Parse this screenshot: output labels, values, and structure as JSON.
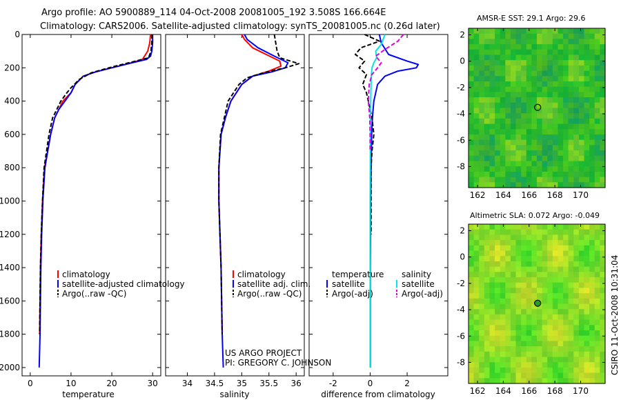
{
  "header": {
    "line1": "Argo profile: AO 5900889_114 04-Oct-2008 20081005_192 3.508S 166.664E",
    "line2": "Climatology: CARS2006. Satellite-adjusted climatology: synTS_20081005.nc (0.26d later)"
  },
  "colors": {
    "climatology": "#ff0000",
    "satellite": "#0000ff",
    "argo": "#000000",
    "satellite_salinity": "#00e5e5",
    "argo_adj_salinity": "#e000e0"
  },
  "chart_data": [
    {
      "type": "line",
      "name": "temperature-profile",
      "xlabel": "temperature",
      "ylabel": "",
      "xlim": [
        -2,
        32
      ],
      "ylim": [
        2050,
        0
      ],
      "xticks": [
        "0",
        "10",
        "20",
        "30"
      ],
      "xtick_values": [
        0,
        10,
        20,
        30
      ],
      "yticks": [
        "0",
        "200",
        "400",
        "600",
        "800",
        "1000",
        "1200",
        "1400",
        "1600",
        "1800",
        "2000"
      ],
      "ytick_values": [
        0,
        200,
        400,
        600,
        800,
        1000,
        1200,
        1400,
        1600,
        1800,
        2000
      ],
      "legend": [
        "climatology",
        "satellite-adjusted climatology",
        "Argo(..raw -QC)"
      ],
      "series": [
        {
          "name": "climatology",
          "color": "#ff0000",
          "style": "solid",
          "x": [
            29.5,
            29.3,
            28.8,
            27.5,
            24,
            20,
            16,
            13,
            11,
            10,
            8,
            7,
            6,
            5,
            4.3,
            3.5,
            3,
            2.7,
            2.5,
            2.4,
            2.3
          ],
          "y": [
            0,
            50,
            100,
            150,
            175,
            200,
            225,
            250,
            300,
            350,
            400,
            450,
            500,
            600,
            700,
            800,
            1000,
            1200,
            1400,
            1600,
            1800
          ]
        },
        {
          "name": "satellite-adjusted climatology",
          "color": "#0000ff",
          "style": "solid",
          "x": [
            30,
            30,
            29.8,
            29.5,
            28.5,
            25,
            20,
            16,
            13,
            11,
            10,
            8.5,
            7,
            6,
            5,
            4.3,
            3.6,
            3.1,
            2.8,
            2.6,
            2.5,
            2.4,
            2.3,
            2.2
          ],
          "y": [
            0,
            50,
            100,
            130,
            150,
            170,
            200,
            225,
            250,
            300,
            350,
            400,
            450,
            500,
            600,
            700,
            800,
            1000,
            1200,
            1400,
            1600,
            1800,
            1900,
            2000
          ]
        },
        {
          "name": "Argo(..raw -QC)",
          "color": "#000000",
          "style": "dashed",
          "x": [
            29.8,
            29.8,
            29.6,
            29.0,
            25,
            20,
            15,
            12,
            10,
            9,
            7.5,
            6.5,
            5.5,
            4.6,
            4,
            3.4,
            3,
            2.7,
            2.5,
            2.4,
            2.3
          ],
          "y": [
            0,
            50,
            100,
            140,
            165,
            195,
            230,
            270,
            320,
            350,
            400,
            450,
            500,
            600,
            700,
            800,
            1000,
            1200,
            1400,
            1600,
            1800
          ]
        }
      ]
    },
    {
      "type": "line",
      "name": "salinity-profile",
      "xlabel": "salinity",
      "xlim": [
        33.6,
        36.15
      ],
      "ylim": [
        2050,
        0
      ],
      "xticks": [
        "34",
        "34.5",
        "35",
        "35.5",
        "36"
      ],
      "xtick_values": [
        34,
        34.5,
        35,
        35.5,
        36
      ],
      "legend": [
        "climatology",
        "satellite adj. clim.",
        "Argo(..raw -QC)"
      ],
      "series": [
        {
          "name": "climatology",
          "color": "#ff0000",
          "style": "solid",
          "x": [
            35.0,
            35.05,
            35.2,
            35.45,
            35.7,
            35.72,
            35.5,
            35.2,
            35.0,
            34.9,
            34.8,
            34.7,
            34.62,
            34.58,
            34.58,
            34.6,
            34.62,
            34.63,
            34.64
          ],
          "y": [
            0,
            30,
            80,
            120,
            160,
            190,
            220,
            250,
            300,
            350,
            400,
            500,
            600,
            800,
            1000,
            1200,
            1400,
            1600,
            1800
          ]
        },
        {
          "name": "satellite adj. clim.",
          "color": "#0000ff",
          "style": "solid",
          "x": [
            35.05,
            35.1,
            35.3,
            35.6,
            35.85,
            35.8,
            35.55,
            35.2,
            35.0,
            34.9,
            34.8,
            34.7,
            34.62,
            34.58,
            34.58,
            34.6,
            34.62,
            34.63,
            34.64,
            34.65,
            34.66
          ],
          "y": [
            0,
            30,
            80,
            130,
            170,
            200,
            225,
            250,
            300,
            350,
            400,
            500,
            600,
            800,
            1000,
            1200,
            1400,
            1600,
            1800,
            1900,
            2000
          ]
        },
        {
          "name": "Argo(..raw -QC)",
          "color": "#000000",
          "style": "dashed",
          "x": [
            35.6,
            35.62,
            35.65,
            35.7,
            36.05,
            35.8,
            35.4,
            35.1,
            34.95,
            34.85,
            34.75,
            34.68,
            34.61,
            34.58,
            34.58,
            34.6,
            34.62,
            34.63,
            34.64
          ],
          "y": [
            0,
            40,
            100,
            140,
            175,
            200,
            230,
            260,
            300,
            350,
            400,
            500,
            600,
            800,
            1000,
            1200,
            1400,
            1600,
            1800
          ]
        }
      ]
    },
    {
      "type": "line",
      "name": "difference-profile",
      "xlabel": "difference from climatology",
      "xlim": [
        -3.3,
        4.2
      ],
      "ylim": [
        2050,
        0
      ],
      "xticks": [
        "-2",
        "0",
        "2"
      ],
      "xtick_values": [
        -2,
        0,
        2
      ],
      "legend": [
        "temperature",
        "satellite",
        "Argo(-adj)",
        "salinity",
        "satellite",
        "Argo(-adj)"
      ],
      "series": [
        {
          "name": "temperature satellite",
          "color": "#0000ff",
          "style": "solid",
          "x": [
            0.5,
            0.6,
            1.0,
            2.0,
            2.6,
            2.5,
            1.5,
            0.8,
            0.4,
            0.2,
            0.12,
            0.08,
            0.05,
            0.03,
            0.02,
            0.01,
            0.01,
            0.01,
            0.01
          ],
          "y": [
            0,
            50,
            120,
            160,
            180,
            200,
            220,
            250,
            300,
            400,
            500,
            600,
            800,
            1000,
            1200,
            1400,
            1600,
            1800,
            2000
          ]
        },
        {
          "name": "temperature Argo(-adj)",
          "color": "#000000",
          "style": "dashed",
          "x": [
            -0.3,
            0.5,
            -0.5,
            -0.8,
            -0.3,
            -0.6,
            -0.2,
            -0.4,
            -0.2,
            -0.1,
            0.1,
            0.2,
            0.1,
            0.05,
            0.05,
            0.05,
            0.05,
            0.05
          ],
          "y": [
            0,
            40,
            80,
            120,
            160,
            200,
            240,
            300,
            350,
            400,
            500,
            600,
            700,
            800,
            900,
            1000,
            1100,
            1200
          ]
        },
        {
          "name": "salinity satellite",
          "color": "#00e5e5",
          "style": "solid",
          "x": [
            0.8,
            0.6,
            0.3,
            0.35,
            0.2,
            0.1,
            0.06,
            0.04,
            0.02,
            0.01,
            0,
            0,
            0,
            0,
            0
          ],
          "y": [
            0,
            60,
            100,
            140,
            170,
            200,
            250,
            350,
            500,
            700,
            1000,
            1300,
            1600,
            1800,
            2000
          ]
        },
        {
          "name": "salinity Argo(-adj)",
          "color": "#e000e0",
          "style": "dashed",
          "x": [
            1.8,
            1.5,
            0.8,
            0.3,
            0.6,
            0.4,
            0.1,
            -0.05,
            -0.1,
            -0.02,
            0,
            0
          ],
          "y": [
            0,
            40,
            90,
            130,
            170,
            200,
            240,
            300,
            400,
            500,
            600,
            700
          ]
        }
      ]
    },
    {
      "type": "heatmap",
      "name": "sst-map",
      "title": "AMSR-E SST: 29.1 Argo: 29.6",
      "xlim": [
        161.3,
        171.9
      ],
      "ylim": [
        -9.6,
        2.5
      ],
      "xticks": [
        "162",
        "164",
        "166",
        "168",
        "170"
      ],
      "xtick_values": [
        162,
        164,
        166,
        168,
        170
      ],
      "yticks": [
        "2",
        "0",
        "-2",
        "-4",
        "-6",
        "-8"
      ],
      "ytick_values": [
        2,
        0,
        -2,
        -4,
        -6,
        -8
      ],
      "marker": {
        "lon": 166.664,
        "lat": -3.508
      }
    },
    {
      "type": "heatmap",
      "name": "sla-map",
      "title": "Altimetric SLA: 0.072 Argo: -0.049",
      "xlim": [
        161.3,
        171.9
      ],
      "ylim": [
        -9.6,
        2.5
      ],
      "xticks": [
        "162",
        "164",
        "166",
        "168",
        "170"
      ],
      "xtick_values": [
        162,
        164,
        166,
        168,
        170
      ],
      "yticks": [
        "2",
        "0",
        "-2",
        "-4",
        "-6",
        "-8"
      ],
      "ytick_values": [
        2,
        0,
        -2,
        -4,
        -6,
        -8
      ],
      "marker": {
        "lon": 166.664,
        "lat": -3.508
      }
    }
  ],
  "credits": {
    "line1": "US ARGO PROJECT",
    "line2": "PI: GREGORY C. JOHNSON"
  },
  "side_label": "CSIRO 11-Oct-2008 10:31:04"
}
